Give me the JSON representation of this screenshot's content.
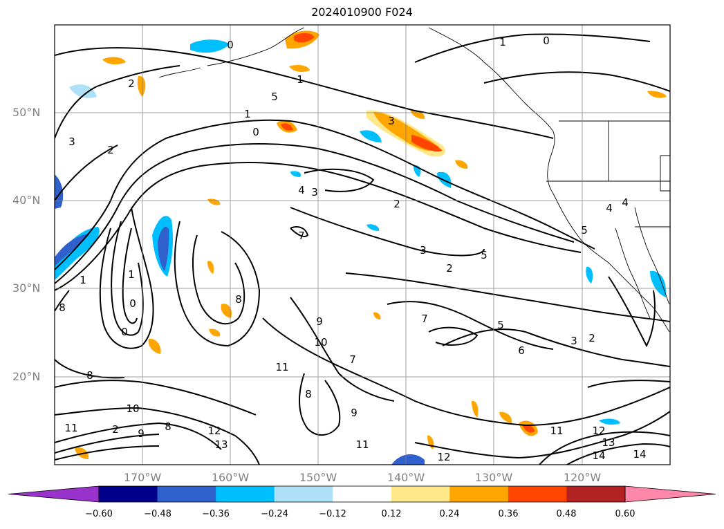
{
  "title": "2024010900 F024",
  "lat_labels": [
    "50°N",
    "40°N",
    "30°N",
    "20°N"
  ],
  "lon_labels": [
    "170°W",
    "160°W",
    "150°W",
    "140°W",
    "130°W",
    "120°W"
  ],
  "colorbar": {
    "ticks": [
      "−0.60",
      "−0.48",
      "−0.36",
      "−0.24",
      "−0.12",
      "0.12",
      "0.24",
      "0.36",
      "0.48",
      "0.60"
    ],
    "colors": [
      "#9933cc",
      "#00008b",
      "#3060cc",
      "#00bfff",
      "#aee0f8",
      "#ffffff",
      "#ffe88a",
      "#ffa500",
      "#ff4500",
      "#b22222",
      "#ff88aa"
    ]
  },
  "contour_labels": [
    "0",
    "1",
    "1",
    "2",
    "3",
    "1",
    "5",
    "1",
    "0",
    "3",
    "2",
    "4",
    "3",
    "2",
    "7",
    "3",
    "2",
    "5",
    "0",
    "1",
    "8",
    "0",
    "8",
    "7",
    "9",
    "10",
    "7",
    "6",
    "5",
    "3",
    "2",
    "8",
    "11",
    "8",
    "9",
    "10",
    "8",
    "2",
    "9",
    "11",
    "12",
    "13",
    "11",
    "12",
    "11",
    "12",
    "13",
    "14",
    "14",
    "4",
    "4",
    "5",
    "0"
  ]
}
